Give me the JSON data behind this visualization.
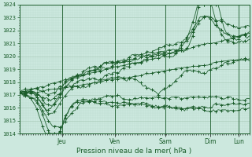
{
  "xlabel": "Pression niveau de la mer( hPa )",
  "ylim": [
    1014,
    1024
  ],
  "yticks": [
    1014,
    1015,
    1016,
    1017,
    1018,
    1019,
    1020,
    1021,
    1022,
    1023,
    1024
  ],
  "bg_color": "#cce8de",
  "grid_major_color": "#aaccbb",
  "grid_minor_color": "#bbddd0",
  "line_color": "#1a5c2a",
  "day_labels": [
    "Jeu",
    "Ven",
    "Sam",
    "Dim",
    "Lun"
  ],
  "day_positions": [
    0.185,
    0.415,
    0.635,
    0.83,
    0.955
  ],
  "n": 200
}
